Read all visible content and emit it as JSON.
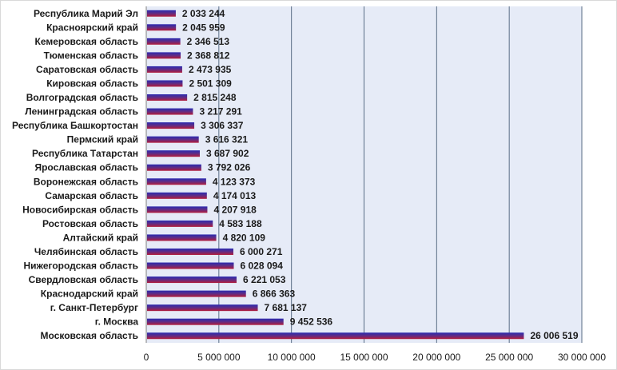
{
  "chart_data": {
    "type": "bar",
    "orientation": "horizontal",
    "categories": [
      "Республика Марий Эл",
      "Красноярский край",
      "Кемеровская область",
      "Тюменская область",
      "Саратовская область",
      "Кировская область",
      "Волгоградская область",
      "Ленинградская область",
      "Республика Башкортостан",
      "Пермский край",
      "Республика Татарстан",
      "Ярославская область",
      "Воронежская область",
      "Самарская область",
      "Новосибирская область",
      "Ростовская область",
      "Алтайский край",
      "Челябинская область",
      "Нижегородская область",
      "Свердловская область",
      "Краснодарский край",
      "г. Санкт-Петербург",
      "г. Москва",
      "Московская область"
    ],
    "values": [
      2033244,
      2045959,
      2346513,
      2368812,
      2473935,
      2501309,
      2815248,
      3217291,
      3306337,
      3616321,
      3687902,
      3792026,
      4123373,
      4174013,
      4207918,
      4583188,
      4820109,
      6000271,
      6028094,
      6221053,
      6866363,
      7681137,
      9452536,
      26006519
    ],
    "value_labels": [
      "2 033 244",
      "2 045 959",
      "2 346 513",
      "2 368 812",
      "2 473 935",
      "2 501 309",
      "2 815 248",
      "3 217 291",
      "3 306 337",
      "3 616 321",
      "3 687 902",
      "3 792 026",
      "4 123 373",
      "4 174 013",
      "4 207 918",
      "4 583 188",
      "4 820 109",
      "6 000 271",
      "6 028 094",
      "6 221 053",
      "6 866 363",
      "7 681 137",
      "9 452 536",
      "26 006 519"
    ],
    "xlim": [
      0,
      30000000
    ],
    "xticks": [
      0,
      5000000,
      10000000,
      15000000,
      20000000,
      25000000,
      30000000
    ],
    "xtick_labels": [
      "0",
      "5 000 000",
      "10 000 000",
      "15 000 000",
      "20 000 000",
      "25 000 000",
      "30 000 000"
    ],
    "grid": "vertical",
    "legend": "none",
    "colors": {
      "plot_background": "#e6ebf7",
      "gridline": "#5a6e86",
      "bar_top": "#2a2ab0",
      "bar_bottom": "#b31c3a"
    }
  }
}
